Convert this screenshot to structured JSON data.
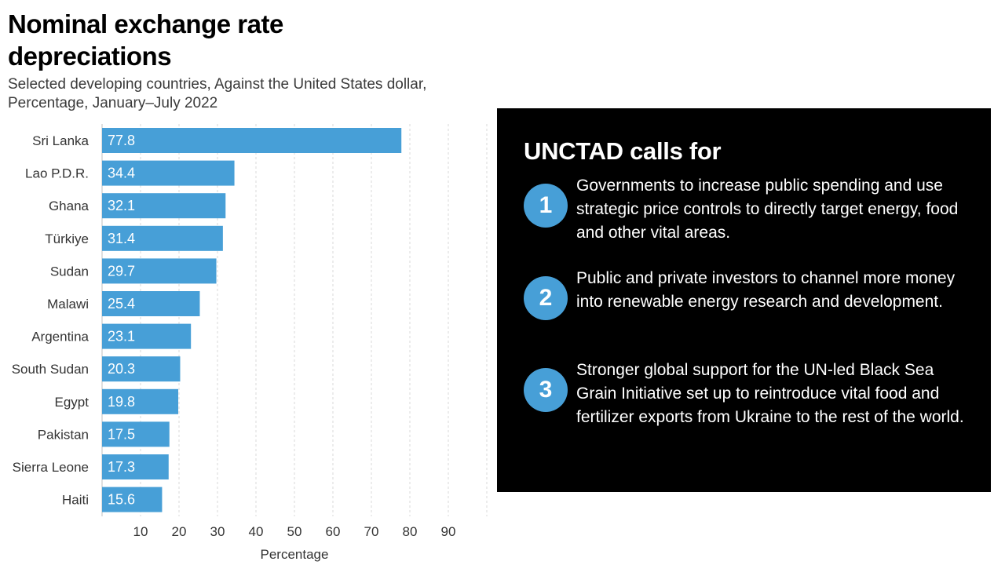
{
  "chart_data": {
    "type": "bar",
    "orientation": "horizontal",
    "title": "Nominal exchange rate depreciations",
    "subtitle": "Selected developing countries, Against the United States dollar, Percentage, January–July 2022",
    "categories": [
      "Sri Lanka",
      "Lao P.D.R.",
      "Ghana",
      "Türkiye",
      "Sudan",
      "Malawi",
      "Argentina",
      "South Sudan",
      "Egypt",
      "Pakistan",
      "Sierra Leone",
      "Haiti"
    ],
    "values": [
      77.8,
      34.4,
      32.1,
      31.4,
      29.7,
      25.4,
      23.1,
      20.3,
      19.8,
      17.5,
      17.3,
      15.6
    ],
    "value_labels": [
      "77.8",
      "34.4",
      "32.1",
      "31.4",
      "29.7",
      "25.4",
      "23.1",
      "20.3",
      "19.8",
      "17.5",
      "17.3",
      "15.6"
    ],
    "xlabel": "Percentage",
    "ylabel": "",
    "xlim": [
      0,
      100
    ],
    "xticks": [
      10,
      20,
      30,
      40,
      50,
      60,
      70,
      80,
      90
    ],
    "xtick_labels": [
      "10",
      "20",
      "30",
      "40",
      "50",
      "60",
      "70",
      "80",
      "90"
    ],
    "grid": true,
    "bar_color": "#479fd7",
    "grid_color": "#d9d9d9"
  },
  "callout": {
    "heading": "UNCTAD calls for",
    "accent_color": "#479fd7",
    "items": [
      {
        "number": "1",
        "text": "Governments to increase public spending and use strategic price controls to directly target energy, food and other vital areas."
      },
      {
        "number": "2",
        "text": "Public and private investors to channel more money into renewable energy research and development."
      },
      {
        "number": "3",
        "text": "Stronger global support for the UN-led Black Sea Grain Initiative set up to reintroduce vital food and fertilizer exports from Ukraine to the rest of the world."
      }
    ]
  }
}
